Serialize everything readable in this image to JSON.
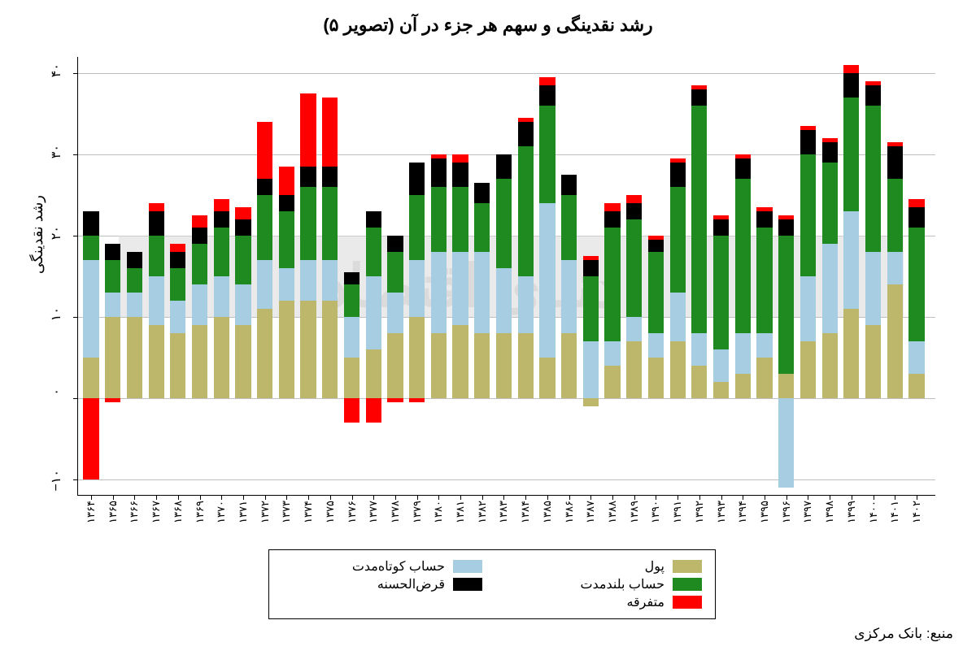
{
  "title": "رشد نقدینگی و سهم هر جزء در آن (تصویر ۵)",
  "ylabel": "رشد نقدینگی",
  "source": "منبع: بانک مرکزی",
  "chart": {
    "type": "stacked-bar",
    "ylim": [
      -12,
      42
    ],
    "yticks": [
      {
        "v": -10,
        "label": "۱۰−"
      },
      {
        "v": 0,
        "label": "۰"
      },
      {
        "v": 10,
        "label": "۱۰"
      },
      {
        "v": 20,
        "label": "۲۰"
      },
      {
        "v": 30,
        "label": "۳۰"
      },
      {
        "v": 40,
        "label": "۴۰"
      }
    ],
    "grid_color": "#bfbfbf",
    "background_color": "#ffffff",
    "watermark_band": {
      "from": 10,
      "to": 20,
      "color": "#d8d8d8"
    },
    "watermark_text": "دنیای اقتصاد",
    "series": [
      {
        "key": "pool",
        "label": "پول",
        "color": "#bdb76b"
      },
      {
        "key": "short",
        "label": "حساب کوتاه‌مدت",
        "color": "#a7cde3"
      },
      {
        "key": "long",
        "label": "حساب بلندمدت",
        "color": "#1f8a1f"
      },
      {
        "key": "qarz",
        "label": "قرض‌الحسنه",
        "color": "#000000"
      },
      {
        "key": "misc",
        "label": "متفرقه",
        "color": "#ff0000"
      }
    ],
    "bar_width": 0.72,
    "years": [
      "۱۳۶۴",
      "۱۳۶۵",
      "۱۳۶۶",
      "۱۳۶۷",
      "۱۳۶۸",
      "۱۳۶۹",
      "۱۳۷۰",
      "۱۳۷۱",
      "۱۳۷۲",
      "۱۳۷۳",
      "۱۳۷۴",
      "۱۳۷۵",
      "۱۳۷۶",
      "۱۳۷۷",
      "۱۳۷۸",
      "۱۳۷۹",
      "۱۳۸۰",
      "۱۳۸۱",
      "۱۳۸۲",
      "۱۳۸۳",
      "۱۳۸۴",
      "۱۳۸۵",
      "۱۳۸۶",
      "۱۳۸۷",
      "۱۳۸۸",
      "۱۳۸۹",
      "۱۳۹۰",
      "۱۳۹۱",
      "۱۳۹۲",
      "۱۳۹۳",
      "۱۳۹۴",
      "۱۳۹۵",
      "۱۳۹۶",
      "۱۳۹۷",
      "۱۳۹۸",
      "۱۳۹۹",
      "۱۴۰۰",
      "۱۴۰۱",
      "۱۴۰۲"
    ],
    "data": [
      {
        "pool": 5,
        "short": 12,
        "long": 3,
        "qarz": 3,
        "misc": -10
      },
      {
        "pool": 10,
        "short": 3,
        "long": 4,
        "qarz": 2,
        "misc": -0.5
      },
      {
        "pool": 10,
        "short": 3,
        "long": 3,
        "qarz": 2,
        "misc": 0
      },
      {
        "pool": 9,
        "short": 6,
        "long": 5,
        "qarz": 3,
        "misc": 1
      },
      {
        "pool": 8,
        "short": 4,
        "long": 4,
        "qarz": 2,
        "misc": 1
      },
      {
        "pool": 9,
        "short": 5,
        "long": 5,
        "qarz": 2,
        "misc": 1.5
      },
      {
        "pool": 10,
        "short": 5,
        "long": 6,
        "qarz": 2,
        "misc": 1.5
      },
      {
        "pool": 9,
        "short": 5,
        "long": 6,
        "qarz": 2,
        "misc": 1.5
      },
      {
        "pool": 11,
        "short": 6,
        "long": 8,
        "qarz": 2,
        "misc": 7
      },
      {
        "pool": 12,
        "short": 4,
        "long": 7,
        "qarz": 2,
        "misc": 3.5
      },
      {
        "pool": 12,
        "short": 5,
        "long": 9,
        "qarz": 2.5,
        "misc": 9
      },
      {
        "pool": 12,
        "short": 5,
        "long": 9,
        "qarz": 2.5,
        "misc": 8.5
      },
      {
        "pool": 5,
        "short": 5,
        "long": 4,
        "qarz": 1.5,
        "misc": -3
      },
      {
        "pool": 6,
        "short": 9,
        "long": 6,
        "qarz": 2,
        "misc": -3
      },
      {
        "pool": 8,
        "short": 5,
        "long": 5,
        "qarz": 2,
        "misc": -0.5
      },
      {
        "pool": 10,
        "short": 7,
        "long": 8,
        "qarz": 4,
        "misc": -0.5
      },
      {
        "pool": 8,
        "short": 10,
        "long": 8,
        "qarz": 3.5,
        "misc": 0.5
      },
      {
        "pool": 9,
        "short": 9,
        "long": 8,
        "qarz": 3,
        "misc": 1
      },
      {
        "pool": 8,
        "short": 10,
        "long": 6,
        "qarz": 2.5,
        "misc": 0
      },
      {
        "pool": 8,
        "short": 8,
        "long": 11,
        "qarz": 3,
        "misc": 0
      },
      {
        "pool": 8,
        "short": 7,
        "long": 16,
        "qarz": 3,
        "misc": 0.5
      },
      {
        "pool": 5,
        "short": 19,
        "long": 12,
        "qarz": 2.5,
        "misc": 1
      },
      {
        "pool": 8,
        "short": 9,
        "long": 8,
        "qarz": 2.5,
        "misc": 0
      },
      {
        "pool": -1,
        "short": 7,
        "long": 8,
        "qarz": 2,
        "misc": 0.5
      },
      {
        "pool": 4,
        "short": 3,
        "long": 14,
        "qarz": 2,
        "misc": 1
      },
      {
        "pool": 7,
        "short": 3,
        "long": 12,
        "qarz": 2,
        "misc": 1
      },
      {
        "pool": 5,
        "short": 3,
        "long": 10,
        "qarz": 1.5,
        "misc": 0.5
      },
      {
        "pool": 7,
        "short": 6,
        "long": 13,
        "qarz": 3,
        "misc": 0.5
      },
      {
        "pool": 4,
        "short": 4,
        "long": 28,
        "qarz": 2,
        "misc": 0.5
      },
      {
        "pool": 2,
        "short": 4,
        "long": 14,
        "qarz": 2,
        "misc": 0.5
      },
      {
        "pool": 3,
        "short": 5,
        "long": 19,
        "qarz": 2.5,
        "misc": 0.5
      },
      {
        "pool": 5,
        "short": 3,
        "long": 13,
        "qarz": 2,
        "misc": 0.5
      },
      {
        "pool": 3,
        "short": -11,
        "long": 17,
        "qarz": 2,
        "misc": 0.5
      },
      {
        "pool": 7,
        "short": 8,
        "long": 15,
        "qarz": 3,
        "misc": 0.5
      },
      {
        "pool": 8,
        "short": 11,
        "long": 10,
        "qarz": 2.5,
        "misc": 0.5
      },
      {
        "pool": 11,
        "short": 12,
        "long": 14,
        "qarz": 3,
        "misc": 1
      },
      {
        "pool": 9,
        "short": 9,
        "long": 18,
        "qarz": 2.5,
        "misc": 0.5
      },
      {
        "pool": 14,
        "short": 4,
        "long": 9,
        "qarz": 4,
        "misc": 0.5
      },
      {
        "pool": 3,
        "short": 4,
        "long": 14,
        "qarz": 2.5,
        "misc": 1
      }
    ]
  },
  "legend": {
    "rows": [
      [
        {
          "k": "pool"
        },
        {
          "k": "short"
        }
      ],
      [
        {
          "k": "long"
        },
        {
          "k": "qarz"
        }
      ],
      [
        {
          "k": "misc"
        }
      ]
    ]
  }
}
